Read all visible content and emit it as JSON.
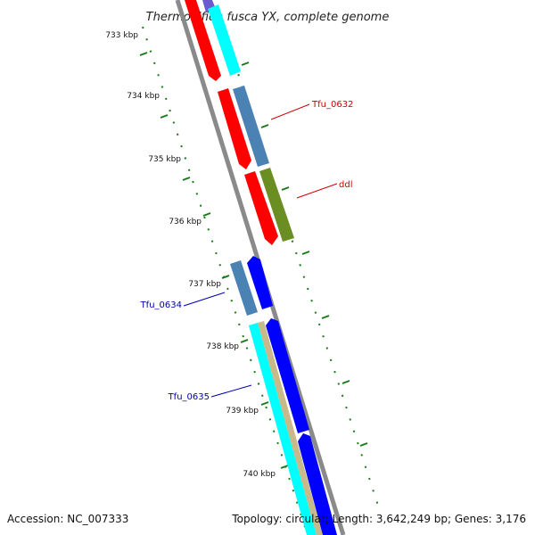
{
  "title": "Thermobifida fusca YX, complete genome",
  "footer": {
    "accession": "Accession: NC_007333",
    "summary": "Topology: circular; Length: 3,642,249 bp; Genes: 3,176"
  },
  "ticks": [
    "733 kbp",
    "734 kbp",
    "735 kbp",
    "736 kbp",
    "737 kbp",
    "738 kbp",
    "739 kbp",
    "740 kbp"
  ],
  "gene_labels": [
    {
      "text": "Tfu_0632",
      "color": "#cc0000"
    },
    {
      "text": "ddl",
      "color": "#cc0000"
    },
    {
      "text": "Tfu_0634",
      "color": "#0000aa"
    },
    {
      "text": "Tfu_0635",
      "color": "#0000aa"
    }
  ],
  "colors": {
    "backbone": "#8a8a8a",
    "red": "#ff0000",
    "steelblue": "#4a82b4",
    "olive": "#6b8e23",
    "blue": "#0000ff",
    "cyan": "#00ffff",
    "tan": "#c8b98a",
    "slateblue": "#6a5acd",
    "tick_green": "#1a7a1a"
  }
}
